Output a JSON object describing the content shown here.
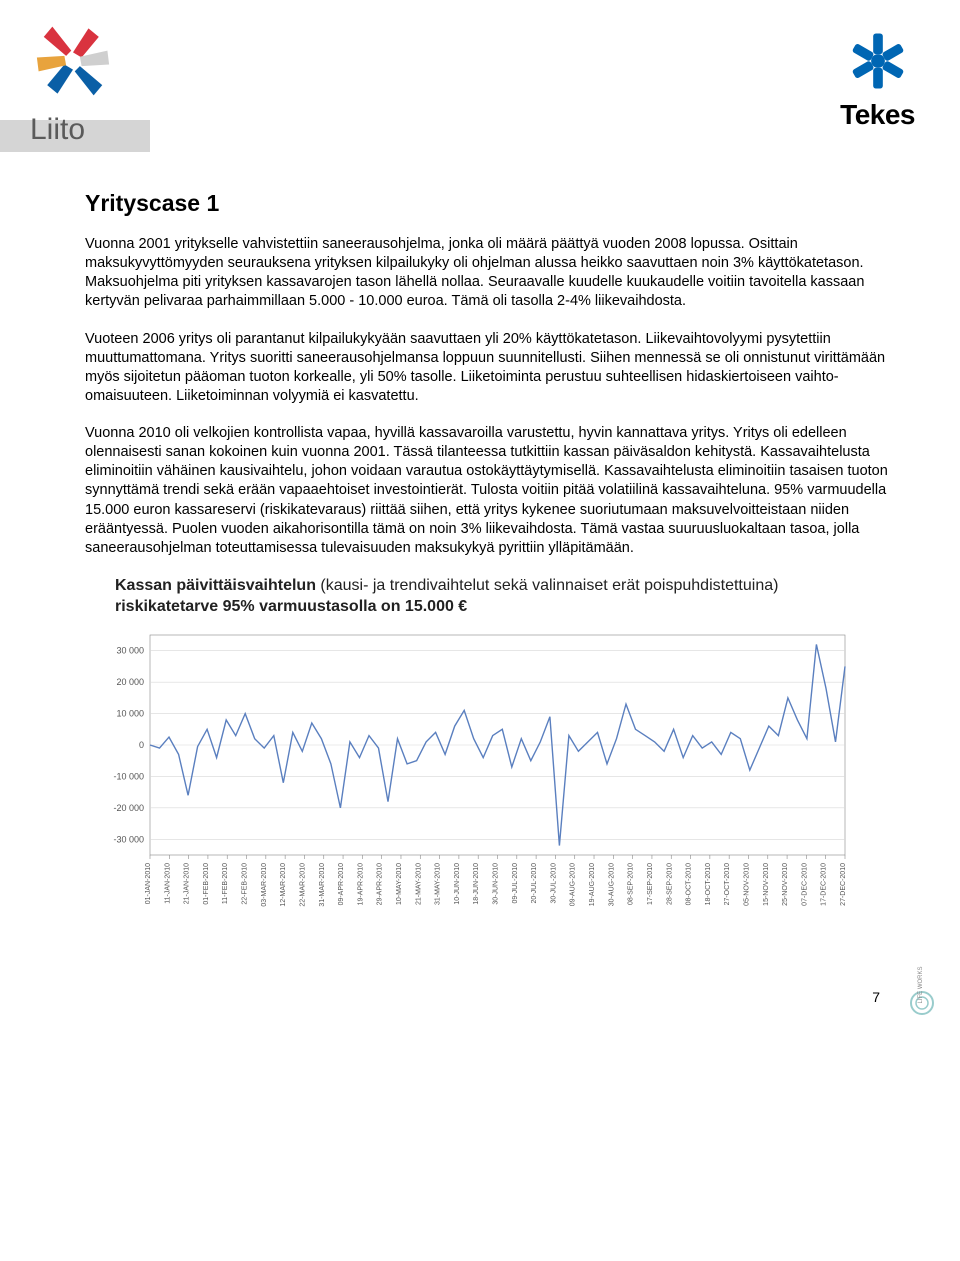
{
  "header": {
    "liito_label": "Liito",
    "tekes_label": "Tekes",
    "liito_colors": {
      "red": "#d9333f",
      "blue": "#0a5fa6",
      "gold": "#e8a33d",
      "grey": "#cfcfcf"
    },
    "tekes_color": "#0066b3"
  },
  "title": "Yrityscase 1",
  "paragraphs": [
    "Vuonna 2001 yritykselle vahvistettiin saneerausohjelma, jonka oli määrä päättyä vuoden 2008 lopussa. Osittain maksukyvyttömyyden seurauksena yrityksen kilpailukyky oli ohjelman alussa heikko saavuttaen noin 3% käyttökatetason. Maksuohjelma piti yrityksen kassavarojen tason lähellä nollaa. Seuraavalle kuudelle kuukaudelle voitiin tavoitella kassaan kertyvän pelivaraa parhaimmillaan 5.000 - 10.000 euroa. Tämä oli tasolla 2-4% liikevaihdosta.",
    "Vuoteen 2006 yritys oli parantanut kilpailukykyään saavuttaen yli 20% käyttökatetason. Liikevaihtovolyymi pysytettiin muuttumattomana. Yritys suoritti saneerausohjelmansa loppuun suunnitellusti. Siihen mennessä se oli onnistunut virittämään myös sijoitetun pääoman tuoton korkealle, yli 50% tasolle. Liiketoiminta perustuu suhteellisen hidaskiertoiseen vaihto-omaisuuteen. Liiketoiminnan volyymiä ei kasvatettu.",
    "Vuonna 2010 oli velkojien kontrollista vapaa, hyvillä kassavaroilla varustettu, hyvin kannattava yritys. Yritys oli edelleen olennaisesti sanan kokoinen kuin vuonna 2001. Tässä tilanteessa tutkittiin kassan päiväsaldon kehitystä. Kassavaihtelusta eliminoitiin vähäinen kausivaihtelu, johon voidaan varautua ostokäyttäytymisellä. Kassavaihtelusta eliminoitiin tasaisen tuoton synnyttämä trendi sekä erään vapaaehtoiset investointierät. Tulosta voitiin pitää volatiilinä kassavaihteluna. 95% varmuudella 15.000 euron kassareservi (riskikatevaraus) riittää siihen, että yritys kykenee suoriutumaan maksuvelvoitteistaan niiden erääntyessä. Puolen vuoden aikahorisontilla tämä on noin 3% liikevaihdosta. Tämä vastaa suuruusluokaltaan tasoa, jolla saneerausohjelman toteuttamisessa tulevaisuuden maksukykyä pyrittiin ylläpitämään."
  ],
  "chart": {
    "title_bold_1": "Kassan päivittäisvaihtelun ",
    "title_light": "(kausi- ja trendivaihtelut sekä valinnaiset erät poispuhdistettuina) ",
    "title_bold_2": "riskikatetarve 95% varmuustasolla on 15.000 €",
    "type": "line",
    "line_color": "#5a7fbf",
    "grid_color": "#d8d8d8",
    "axis_color": "#888888",
    "background_color": "#ffffff",
    "text_color": "#555555",
    "ylim": [
      -35000,
      35000
    ],
    "yticks": [
      -30000,
      -20000,
      -10000,
      0,
      10000,
      20000,
      30000
    ],
    "ytick_labels": [
      "-30 000",
      "-20 000",
      "-10 000",
      "0",
      "10 000",
      "20 000",
      "30 000"
    ],
    "xtick_labels": [
      "01-JAN-2010",
      "11-JAN-2010",
      "21-JAN-2010",
      "01-FEB-2010",
      "11-FEB-2010",
      "22-FEB-2010",
      "03-MAR-2010",
      "12-MAR-2010",
      "22-MAR-2010",
      "31-MAR-2010",
      "09-APR-2010",
      "19-APR-2010",
      "29-APR-2010",
      "10-MAY-2010",
      "21-MAY-2010",
      "31-MAY-2010",
      "10-JUN-2010",
      "18-JUN-2010",
      "30-JUN-2010",
      "09-JUL-2010",
      "20-JUL-2010",
      "30-JUL-2010",
      "09-AUG-2010",
      "19-AUG-2010",
      "30-AUG-2010",
      "08-SEP-2010",
      "17-SEP-2010",
      "28-SEP-2010",
      "08-OCT-2010",
      "18-OCT-2010",
      "27-OCT-2010",
      "05-NOV-2010",
      "15-NOV-2010",
      "25-NOV-2010",
      "07-DEC-2010",
      "17-DEC-2010",
      "27-DEC-2010"
    ],
    "values": [
      0,
      -1000,
      2500,
      -3000,
      -16000,
      -500,
      5000,
      -4000,
      8000,
      3000,
      10000,
      2000,
      -1000,
      3000,
      -12000,
      4000,
      -2000,
      7000,
      2000,
      -6000,
      -20000,
      1000,
      -4000,
      3000,
      -1000,
      -18000,
      2000,
      -6000,
      -5000,
      1000,
      4000,
      -3000,
      6000,
      11000,
      2000,
      -4000,
      3000,
      5000,
      -7000,
      2000,
      -5000,
      1000,
      9000,
      -32000,
      3000,
      -2000,
      1000,
      4000,
      -6000,
      2000,
      13000,
      5000,
      3000,
      1000,
      -2000,
      5000,
      -4000,
      3000,
      -1000,
      1000,
      -3000,
      4000,
      2000,
      -8000,
      -1000,
      6000,
      3000,
      15000,
      8000,
      2000,
      32000,
      18000,
      1000,
      25000
    ],
    "axis_fontsize": 7,
    "line_width": 1.4
  },
  "footer": {
    "page": "7",
    "brand": "LIFE WORKS"
  }
}
